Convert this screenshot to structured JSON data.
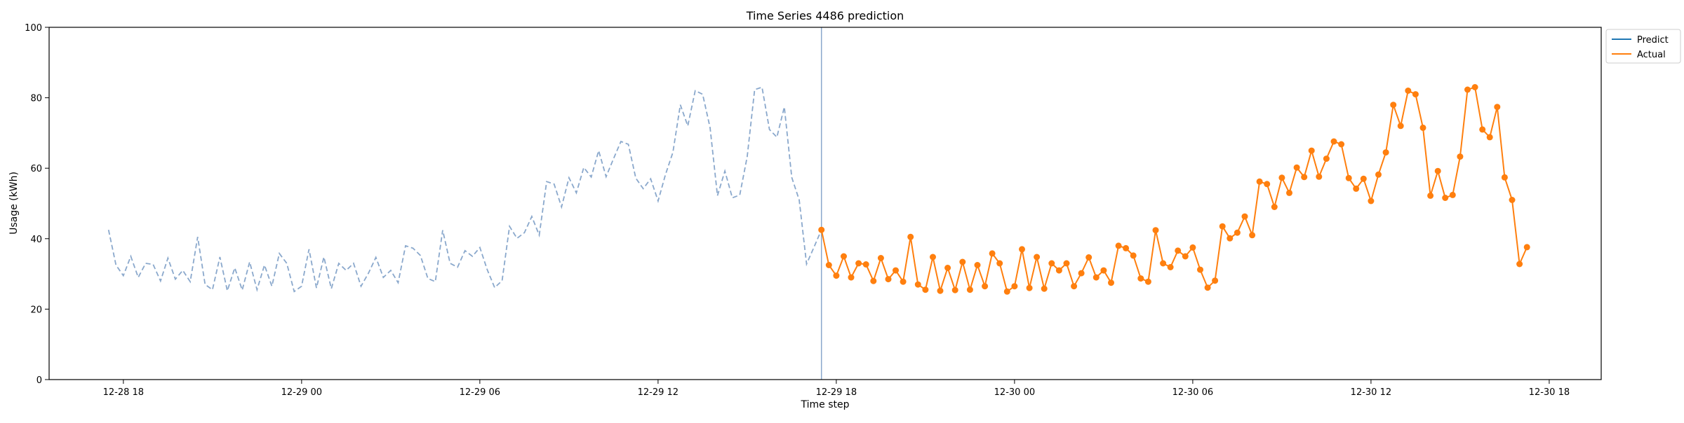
{
  "chart_data": {
    "type": "line",
    "title": "Time Series 4486 prediction",
    "xlabel": "Time step",
    "ylabel": "Usage (kWh)",
    "ylim": [
      0,
      100
    ],
    "yticks": [
      0,
      20,
      40,
      60,
      80,
      100
    ],
    "x_tick_labels": [
      "12-28 18",
      "12-29 00",
      "12-29 06",
      "12-29 12",
      "12-29 18",
      "12-30 00",
      "12-30 06",
      "12-30 12",
      "12-30 18"
    ],
    "x_tick_times": [
      "2023-12-28T18:00",
      "2023-12-29T00:00",
      "2023-12-29T06:00",
      "2023-12-29T12:00",
      "2023-12-29T18:00",
      "2023-12-30T00:00",
      "2023-12-30T06:00",
      "2023-12-30T12:00",
      "2023-12-30T18:00"
    ],
    "xlim": [
      "2023-12-28T15:30",
      "2023-12-30T19:45"
    ],
    "vline": "2023-12-29T17:30",
    "grid": false,
    "legend_position": "outside top-right",
    "history": {
      "start": "2023-12-28T17:30",
      "step_minutes": 15,
      "values": [
        42.5,
        32.5,
        29.5,
        35,
        29,
        33,
        32.7,
        28,
        34.5,
        28.5,
        31,
        27.8,
        40.5,
        27,
        25.5,
        34.8,
        25.2,
        31.7,
        25.4,
        33.4,
        25.5,
        32.5,
        26.5,
        35.8,
        33,
        25,
        26.5,
        37,
        26,
        34.8,
        25.8,
        33,
        31,
        33,
        26.5,
        30.2,
        34.7,
        29,
        31,
        27.5,
        38,
        37.3,
        35.2,
        28.7,
        27.8,
        42.4,
        33,
        31.9,
        36.6,
        35,
        37.5,
        31.2,
        26.1,
        28.1,
        43.5,
        40.1,
        41.7,
        46.3,
        41,
        56.2,
        55.5,
        49,
        57.3,
        53,
        60.2,
        57.5,
        65,
        57.6,
        62.7,
        67.6,
        66.8,
        57.2,
        54.2,
        57,
        50.7,
        58.2,
        64.5,
        78,
        72,
        82,
        81,
        71.5,
        52.2,
        59.2,
        51.6,
        52.4,
        63.3,
        82.3,
        83,
        71,
        68.8,
        77.4,
        57.4,
        51,
        32.8,
        37.6,
        42.5
      ],
      "color": "#8aa8cc"
    },
    "series": [
      {
        "name": "Predict",
        "color": "#1f77b4",
        "values": []
      },
      {
        "name": "Actual",
        "color": "#ff7f0e",
        "start": "2023-12-29T17:30",
        "step_minutes": 15,
        "values": [
          42.5,
          32.5,
          29.5,
          35,
          29,
          33,
          32.7,
          28,
          34.5,
          28.5,
          31,
          27.8,
          40.5,
          27,
          25.5,
          34.8,
          25.2,
          31.7,
          25.4,
          33.4,
          25.5,
          32.5,
          26.5,
          35.8,
          33,
          25,
          26.5,
          37,
          26,
          34.8,
          25.8,
          33,
          31,
          33,
          26.5,
          30.2,
          34.7,
          29,
          31,
          27.5,
          38,
          37.3,
          35.2,
          28.7,
          27.8,
          42.4,
          33,
          31.9,
          36.6,
          35,
          37.5,
          31.2,
          26.1,
          28.1,
          43.5,
          40.1,
          41.7,
          46.3,
          41,
          56.2,
          55.5,
          49,
          57.3,
          53,
          60.2,
          57.5,
          65,
          57.6,
          62.7,
          67.6,
          66.8,
          57.2,
          54.2,
          57,
          50.7,
          58.2,
          64.5,
          78,
          72,
          82,
          81,
          71.5,
          52.2,
          59.2,
          51.6,
          52.4,
          63.3,
          82.3,
          83,
          71,
          68.8,
          77.4,
          57.4,
          51,
          32.8,
          37.6
        ]
      }
    ]
  }
}
